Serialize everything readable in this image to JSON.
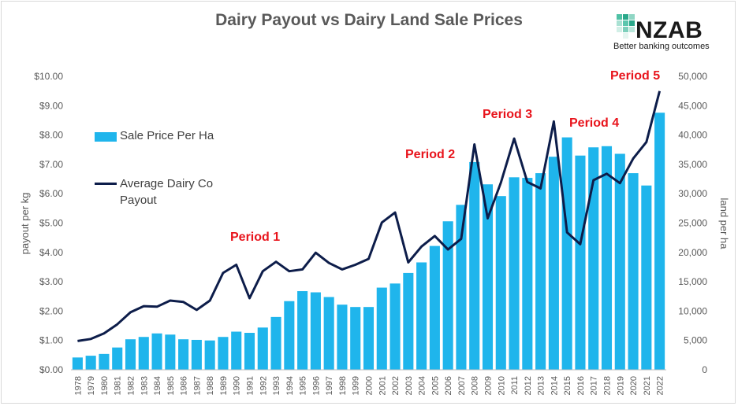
{
  "logo": {
    "name": "NZAB",
    "tagline": "Better banking outcomes"
  },
  "colors": {
    "bars": "#1fb5ec",
    "line": "#0d1d4a",
    "annotation": "#e8141c",
    "axis_text": "#595959"
  },
  "chart_data": {
    "type": "bar-line-combo",
    "title": "Dairy Payout vs Dairy Land Sale Prices",
    "categories": [
      "1978",
      "1979",
      "1980",
      "1981",
      "1982",
      "1983",
      "1984",
      "1985",
      "1986",
      "1987",
      "1988",
      "1989",
      "1990",
      "1991",
      "1992",
      "1993",
      "1994",
      "1995",
      "1996",
      "1997",
      "1998",
      "1999",
      "2000",
      "2001",
      "2002",
      "2003",
      "2004",
      "2005",
      "2006",
      "2007",
      "2008",
      "2009",
      "2010",
      "2011",
      "2012",
      "2013",
      "2014",
      "2015",
      "2016",
      "2017",
      "2018",
      "2019",
      "2020",
      "2021",
      "2022"
    ],
    "series": [
      {
        "name": "Sale Price Per Ha",
        "kind": "bar",
        "axis": "right",
        "values": [
          2100,
          2400,
          2700,
          3800,
          5200,
          5600,
          6200,
          6000,
          5200,
          5100,
          5000,
          5600,
          6500,
          6300,
          7200,
          9000,
          11700,
          13400,
          13200,
          12400,
          11100,
          10700,
          10700,
          14000,
          14700,
          16500,
          18300,
          21100,
          25300,
          28100,
          35400,
          31600,
          29600,
          32800,
          32700,
          33500,
          36300,
          39600,
          36500,
          37900,
          38100,
          36800,
          33500,
          31400,
          43800
        ]
      },
      {
        "name": "Average Dairy Co Payout",
        "kind": "line",
        "axis": "left",
        "values": [
          0.98,
          1.05,
          1.24,
          1.55,
          1.96,
          2.17,
          2.15,
          2.36,
          2.31,
          2.04,
          2.36,
          3.3,
          3.58,
          2.44,
          3.36,
          3.68,
          3.36,
          3.42,
          3.99,
          3.64,
          3.42,
          3.58,
          3.78,
          5.02,
          5.36,
          3.66,
          4.2,
          4.56,
          4.1,
          4.46,
          7.68,
          5.16,
          6.38,
          7.88,
          6.4,
          6.18,
          8.46,
          4.68,
          4.28,
          6.46,
          6.68,
          6.36,
          7.2,
          7.76,
          9.5
        ]
      }
    ],
    "yleft": {
      "label": "payout per kg",
      "range": [
        0,
        10
      ],
      "ticks": [
        "$0.00",
        "$1.00",
        "$2.00",
        "$3.00",
        "$4.00",
        "$5.00",
        "$6.00",
        "$7.00",
        "$8.00",
        "$9.00",
        "$10.00"
      ]
    },
    "yright": {
      "label": "land per ha",
      "range": [
        0,
        50000
      ],
      "ticks": [
        "0",
        "5,000",
        "10,000",
        "15,000",
        "20,000",
        "25,000",
        "30,000",
        "35,000",
        "40,000",
        "45,000",
        "50,000"
      ]
    },
    "legend": [
      "Sale Price Per Ha",
      "Average Dairy Co Payout"
    ],
    "annotations": [
      "Period 1",
      "Period 2",
      "Period 3",
      "Period 4",
      "Period 5"
    ]
  }
}
